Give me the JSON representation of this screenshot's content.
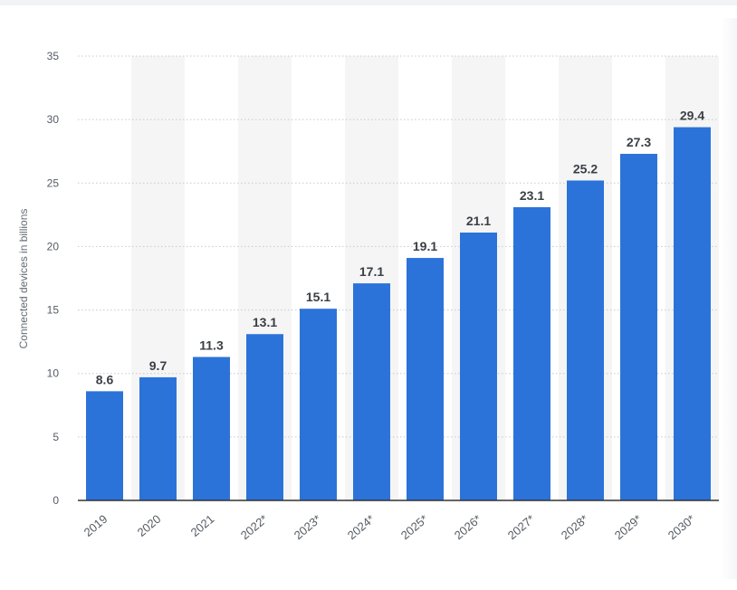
{
  "chart_data": {
    "type": "bar",
    "categories": [
      "2019",
      "2020",
      "2021",
      "2022*",
      "2023*",
      "2024*",
      "2025*",
      "2026*",
      "2027*",
      "2028*",
      "2029*",
      "2030*"
    ],
    "values": [
      8.6,
      9.7,
      11.3,
      13.1,
      15.1,
      17.1,
      19.1,
      21.1,
      23.1,
      25.2,
      27.3,
      29.4
    ],
    "value_labels": [
      "8.6",
      "9.7",
      "11.3",
      "13.1",
      "15.1",
      "17.1",
      "19.1",
      "21.1",
      "23.1",
      "25.2",
      "27.3",
      "29.4"
    ],
    "title": "",
    "xlabel": "",
    "ylabel": "Connected devices in billions",
    "ylim": [
      0,
      35
    ],
    "yticks": [
      0,
      5,
      10,
      15,
      20,
      25,
      30,
      35
    ],
    "grid": "horizontal dotted",
    "bar_color": "#2c73d9",
    "band_color": "#f5f5f6",
    "legend": "none"
  }
}
